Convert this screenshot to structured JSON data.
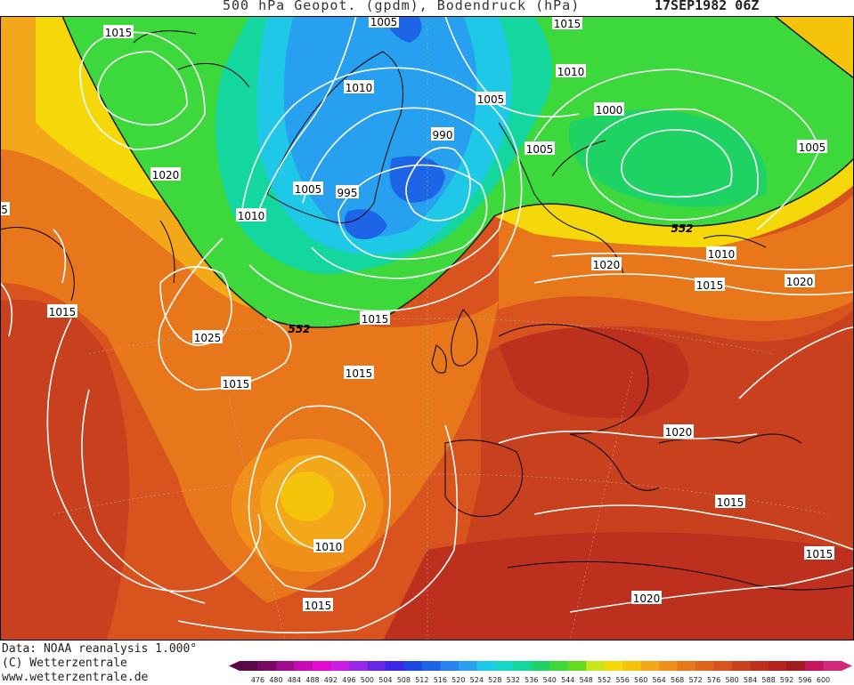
{
  "header": {
    "title": "500 hPa Geopot. (gpdm), Bodendruck (hPa)",
    "datetime": "17SEP1982 06Z"
  },
  "map": {
    "fill_colors": {
      "ocean_bg": "#d9531e",
      "deep_red": "#b3241e",
      "orange": "#e8761a",
      "light_orange": "#f2a818",
      "yellow": "#f5d80a",
      "yellow_green": "#c8e61e",
      "green": "#3cd83c",
      "teal": "#14d7a0",
      "cyan": "#1ec8e6",
      "light_blue": "#28a0f0",
      "blue": "#1e64e6"
    },
    "geopotential_labels": [
      "552",
      "552"
    ],
    "isobar_labels": [
      "1015",
      "1005",
      "1015",
      "1010",
      "1010",
      "1005",
      "990",
      "1000",
      "1005",
      "1020",
      "1005",
      "995",
      "1010",
      "1005",
      "552",
      "1020",
      "1010",
      "1015",
      "1020",
      "1015",
      "1025",
      "1015",
      "552",
      "1015",
      "1020",
      "1020",
      "1015",
      "1010",
      "1015",
      "1015",
      "1015",
      "5"
    ]
  },
  "footer": {
    "data_line": "Data: NOAA reanalysis 1.000°",
    "copyright": "(C) Wetterzentrale",
    "website": "www.wetterzentrale.de"
  },
  "colorbar": {
    "ticks": [
      "476",
      "480",
      "484",
      "488",
      "492",
      "496",
      "500",
      "504",
      "508",
      "512",
      "516",
      "520",
      "524",
      "528",
      "532",
      "536",
      "540",
      "544",
      "548",
      "552",
      "556",
      "560",
      "564",
      "568",
      "572",
      "576",
      "580",
      "584",
      "588",
      "592",
      "596",
      "600"
    ],
    "colors": [
      "#5a0a46",
      "#780a64",
      "#a00a8c",
      "#c80ab4",
      "#e60ad2",
      "#c81ee6",
      "#9628e6",
      "#6428e6",
      "#3c28e6",
      "#1e46e6",
      "#1e64e6",
      "#2882f0",
      "#28a0f0",
      "#1ec8e6",
      "#14d7c8",
      "#14d7a0",
      "#1ed264",
      "#3cd83c",
      "#64dc1e",
      "#c8e61e",
      "#f5d80a",
      "#f5c40a",
      "#f2a818",
      "#f09018",
      "#e8761a",
      "#e0641e",
      "#d9531e",
      "#c8401e",
      "#be301e",
      "#b3241e",
      "#a01a1e",
      "#c8145a",
      "#d2287a"
    ]
  }
}
